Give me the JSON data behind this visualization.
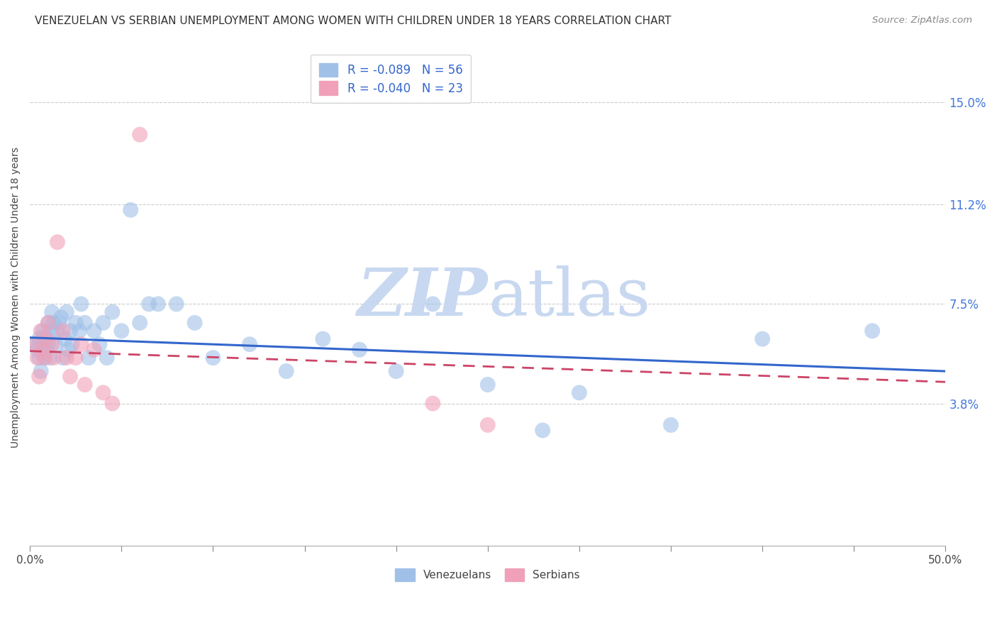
{
  "title": "VENEZUELAN VS SERBIAN UNEMPLOYMENT AMONG WOMEN WITH CHILDREN UNDER 18 YEARS CORRELATION CHART",
  "source": "Source: ZipAtlas.com",
  "ylabel": "Unemployment Among Women with Children Under 18 years",
  "ytick_labels": [
    "3.8%",
    "7.5%",
    "11.2%",
    "15.0%"
  ],
  "ytick_values": [
    0.038,
    0.075,
    0.112,
    0.15
  ],
  "xlim": [
    0.0,
    0.5
  ],
  "ylim": [
    -0.015,
    0.17
  ],
  "legend_blue_label": "R = -0.089   N = 56",
  "legend_pink_label": "R = -0.040   N = 23",
  "bottom_legend_venezuelans": "Venezuelans",
  "bottom_legend_serbians": "Serbians",
  "blue_scatter_color": "#a0c0e8",
  "pink_scatter_color": "#f0a0b8",
  "line_blue": "#3366cc",
  "line_pink": "#cc4466",
  "watermark_zip_color": "#c8d8f0",
  "watermark_atlas_color": "#c8d8f0",
  "venezuelan_x": [
    0.003,
    0.004,
    0.005,
    0.005,
    0.006,
    0.007,
    0.007,
    0.008,
    0.008,
    0.009,
    0.01,
    0.01,
    0.011,
    0.012,
    0.012,
    0.013,
    0.014,
    0.015,
    0.016,
    0.017,
    0.018,
    0.019,
    0.02,
    0.021,
    0.022,
    0.023,
    0.025,
    0.027,
    0.028,
    0.03,
    0.032,
    0.035,
    0.038,
    0.04,
    0.042,
    0.045,
    0.05,
    0.055,
    0.06,
    0.065,
    0.07,
    0.08,
    0.09,
    0.1,
    0.12,
    0.14,
    0.16,
    0.18,
    0.2,
    0.22,
    0.25,
    0.28,
    0.3,
    0.35,
    0.4,
    0.46
  ],
  "venezuelan_y": [
    0.06,
    0.058,
    0.055,
    0.062,
    0.05,
    0.06,
    0.065,
    0.055,
    0.063,
    0.058,
    0.06,
    0.068,
    0.055,
    0.065,
    0.072,
    0.068,
    0.06,
    0.065,
    0.068,
    0.07,
    0.055,
    0.062,
    0.072,
    0.058,
    0.065,
    0.06,
    0.068,
    0.065,
    0.075,
    0.068,
    0.055,
    0.065,
    0.06,
    0.068,
    0.055,
    0.072,
    0.065,
    0.11,
    0.068,
    0.075,
    0.075,
    0.075,
    0.068,
    0.055,
    0.06,
    0.05,
    0.062,
    0.058,
    0.05,
    0.075,
    0.045,
    0.028,
    0.042,
    0.03,
    0.062,
    0.065
  ],
  "serbian_x": [
    0.003,
    0.004,
    0.005,
    0.006,
    0.007,
    0.008,
    0.009,
    0.01,
    0.012,
    0.013,
    0.015,
    0.018,
    0.02,
    0.022,
    0.025,
    0.028,
    0.03,
    0.035,
    0.04,
    0.045,
    0.06,
    0.22,
    0.25
  ],
  "serbian_y": [
    0.06,
    0.055,
    0.048,
    0.065,
    0.058,
    0.055,
    0.062,
    0.068,
    0.06,
    0.055,
    0.098,
    0.065,
    0.055,
    0.048,
    0.055,
    0.06,
    0.045,
    0.058,
    0.042,
    0.038,
    0.138,
    0.038,
    0.03
  ],
  "ven_line_x0": 0.0,
  "ven_line_y0": 0.0625,
  "ven_line_x1": 0.5,
  "ven_line_y1": 0.05,
  "ser_line_x0": 0.0,
  "ser_line_y0": 0.0575,
  "ser_line_x1": 0.5,
  "ser_line_y1": 0.046
}
